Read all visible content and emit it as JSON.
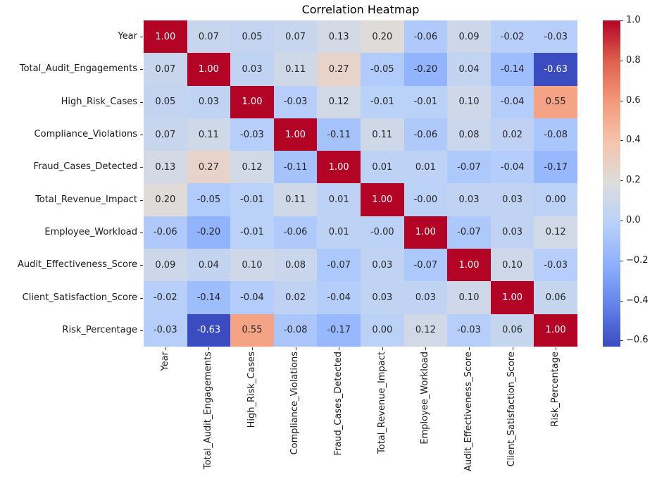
{
  "chart_data": {
    "type": "heatmap",
    "title": "Correlation Heatmap",
    "labels": [
      "Year",
      "Total_Audit_Engagements",
      "High_Risk_Cases",
      "Compliance_Violations",
      "Fraud_Cases_Detected",
      "Total_Revenue_Impact",
      "Employee_Workload",
      "Audit_Effectiveness_Score",
      "Client_Satisfaction_Score",
      "Risk_Percentage"
    ],
    "matrix": [
      [
        "1.00",
        "0.07",
        "0.05",
        "0.07",
        "0.13",
        "0.20",
        "-0.06",
        "0.09",
        "-0.02",
        "-0.03"
      ],
      [
        "0.07",
        "1.00",
        "0.03",
        "0.11",
        "0.27",
        "-0.05",
        "-0.20",
        "0.04",
        "-0.14",
        "-0.63"
      ],
      [
        "0.05",
        "0.03",
        "1.00",
        "-0.03",
        "0.12",
        "-0.01",
        "-0.01",
        "0.10",
        "-0.04",
        "0.55"
      ],
      [
        "0.07",
        "0.11",
        "-0.03",
        "1.00",
        "-0.11",
        "0.11",
        "-0.06",
        "0.08",
        "0.02",
        "-0.08"
      ],
      [
        "0.13",
        "0.27",
        "0.12",
        "-0.11",
        "1.00",
        "0.01",
        "0.01",
        "-0.07",
        "-0.04",
        "-0.17"
      ],
      [
        "0.20",
        "-0.05",
        "-0.01",
        "0.11",
        "0.01",
        "1.00",
        "-0.00",
        "0.03",
        "0.03",
        "0.00"
      ],
      [
        "-0.06",
        "-0.20",
        "-0.01",
        "-0.06",
        "0.01",
        "-0.00",
        "1.00",
        "-0.07",
        "0.03",
        "0.12"
      ],
      [
        "0.09",
        "0.04",
        "0.10",
        "0.08",
        "-0.07",
        "0.03",
        "-0.07",
        "1.00",
        "0.10",
        "-0.03"
      ],
      [
        "-0.02",
        "-0.14",
        "-0.04",
        "0.02",
        "-0.04",
        "0.03",
        "0.03",
        "0.10",
        "1.00",
        "0.06"
      ],
      [
        "-0.03",
        "-0.63",
        "0.55",
        "-0.08",
        "-0.17",
        "0.00",
        "0.12",
        "-0.03",
        "0.06",
        "1.00"
      ]
    ],
    "vmin": -0.63,
    "vmax": 1.0,
    "colormap": {
      "name": "coolwarm",
      "stops": [
        {
          "t": 0.0,
          "rgb": [
            59,
            76,
            192
          ]
        },
        {
          "t": 0.125,
          "rgb": [
            98,
            130,
            234
          ]
        },
        {
          "t": 0.25,
          "rgb": [
            141,
            176,
            254
          ]
        },
        {
          "t": 0.375,
          "rgb": [
            184,
            208,
            249
          ]
        },
        {
          "t": 0.5,
          "rgb": [
            221,
            221,
            221
          ]
        },
        {
          "t": 0.625,
          "rgb": [
            245,
            196,
            173
          ]
        },
        {
          "t": 0.75,
          "rgb": [
            244,
            154,
            123
          ]
        },
        {
          "t": 0.875,
          "rgb": [
            222,
            96,
            77
          ]
        },
        {
          "t": 1.0,
          "rgb": [
            180,
            4,
            38
          ]
        }
      ]
    },
    "colorbar_ticks": [
      {
        "value": 1.0,
        "label": "1.0"
      },
      {
        "value": 0.8,
        "label": "0.8"
      },
      {
        "value": 0.6,
        "label": "0.6"
      },
      {
        "value": 0.4,
        "label": "0.4"
      },
      {
        "value": 0.2,
        "label": "0.2"
      },
      {
        "value": 0.0,
        "label": "0.0"
      },
      {
        "value": -0.2,
        "label": "−0.2"
      },
      {
        "value": -0.4,
        "label": "−0.4"
      },
      {
        "value": -0.6,
        "label": "−0.6"
      }
    ],
    "annotation_text_colors": {
      "on_light": "#262626",
      "on_dark": "#ffffff"
    },
    "legend_position": "right",
    "grid": "off"
  }
}
